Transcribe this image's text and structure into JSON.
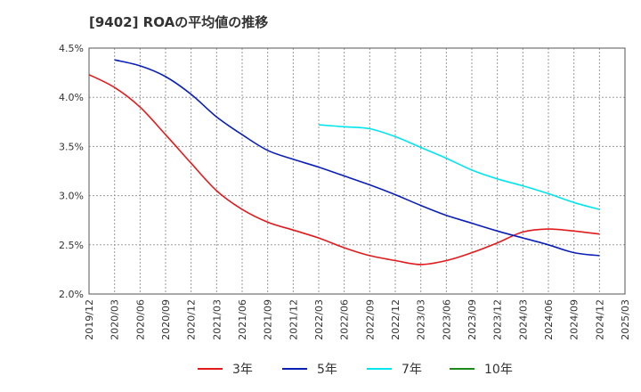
{
  "chart_data": {
    "type": "line",
    "title": "[9402]  ROAの平均値の推移",
    "xlabel": "",
    "ylabel": "",
    "x": [
      "2019/12",
      "2020/03",
      "2020/06",
      "2020/09",
      "2020/12",
      "2021/03",
      "2021/06",
      "2021/09",
      "2021/12",
      "2022/03",
      "2022/06",
      "2022/09",
      "2022/12",
      "2023/03",
      "2023/06",
      "2023/09",
      "2023/12",
      "2024/03",
      "2024/06",
      "2024/09",
      "2024/12",
      "2025/03"
    ],
    "ylim": [
      2.0,
      4.5
    ],
    "yticks": [
      "2.0%",
      "2.5%",
      "3.0%",
      "3.5%",
      "4.0%",
      "4.5%"
    ],
    "yticks_values": [
      2.0,
      2.5,
      3.0,
      3.5,
      4.0,
      4.5
    ],
    "grid": true,
    "legend_position": "bottom",
    "series": [
      {
        "name": "3年",
        "color": "#e31a1c",
        "values": [
          4.23,
          4.1,
          3.9,
          3.62,
          3.33,
          3.05,
          2.86,
          2.73,
          2.65,
          2.57,
          2.47,
          2.39,
          2.34,
          2.3,
          2.34,
          2.42,
          2.52,
          2.63,
          2.66,
          2.64,
          2.61,
          null
        ]
      },
      {
        "name": "5年",
        "color": "#0a1fb8",
        "values": [
          null,
          4.38,
          4.32,
          4.21,
          4.03,
          3.8,
          3.62,
          3.46,
          3.37,
          3.29,
          3.2,
          3.11,
          3.01,
          2.9,
          2.8,
          2.72,
          2.64,
          2.57,
          2.5,
          2.42,
          2.39,
          null
        ]
      },
      {
        "name": "7年",
        "color": "#00e5ee",
        "values": [
          null,
          null,
          null,
          null,
          null,
          null,
          null,
          null,
          null,
          3.72,
          3.7,
          3.68,
          3.6,
          3.49,
          3.38,
          3.26,
          3.17,
          3.1,
          3.02,
          2.93,
          2.86,
          null
        ]
      },
      {
        "name": "10年",
        "color": "#1a8a1a",
        "values": [
          null,
          null,
          null,
          null,
          null,
          null,
          null,
          null,
          null,
          null,
          null,
          null,
          null,
          null,
          null,
          null,
          null,
          null,
          null,
          null,
          null,
          null
        ]
      }
    ]
  }
}
